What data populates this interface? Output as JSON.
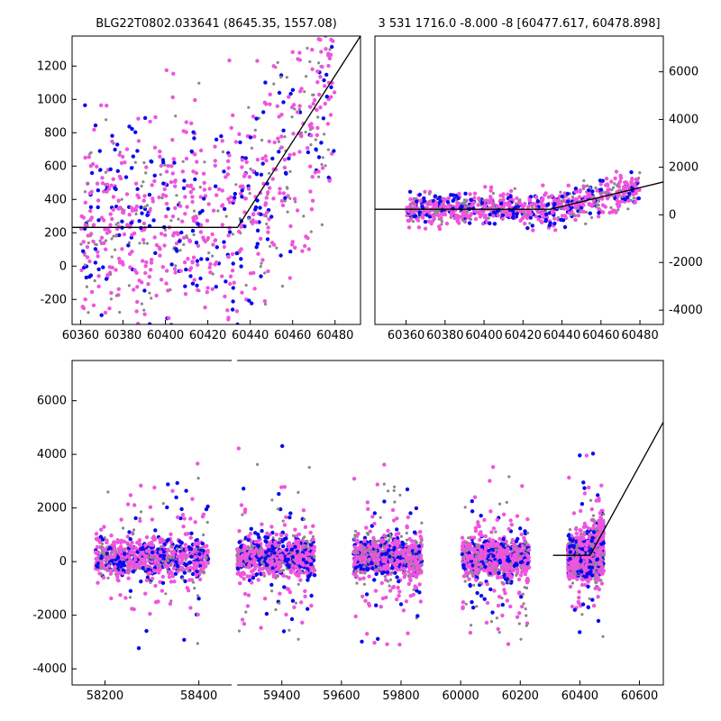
{
  "chart_data": [
    {
      "type": "scatter",
      "title": "BLG22T0802.033641 (8645.35, 1557.08)",
      "xlim": [
        60356,
        60492
      ],
      "ylim": [
        -350,
        1380
      ],
      "xticks": [
        "60360",
        "60380",
        "60400",
        "60420",
        "60440",
        "60460",
        "60480"
      ],
      "yticks": [
        "-200",
        "0",
        "200",
        "400",
        "600",
        "800",
        "1000",
        "1200"
      ],
      "grid": false,
      "series_colors": {
        "gray": "#888888",
        "magenta": "#ee55dd",
        "blue": "#0a0aee"
      },
      "model_line": {
        "x": [
          60356,
          60434,
          60492
        ],
        "y": [
          232,
          232,
          1380
        ]
      }
    },
    {
      "type": "scatter",
      "title": "3 531 1716.0 -8.000 -8 [60477.617, 60478.898]",
      "xlim": [
        60344,
        60492
      ],
      "ylim": [
        -4600,
        7500
      ],
      "xticks": [
        "60360",
        "60380",
        "60400",
        "60420",
        "60440",
        "60460",
        "60480"
      ],
      "yticks": [
        "-4000",
        "-2000",
        "0",
        "2000",
        "4000",
        "6000"
      ],
      "yaxis_side": "right",
      "grid": false,
      "model_line": {
        "x": [
          60344,
          60434,
          60492
        ],
        "y": [
          232,
          232,
          1380
        ]
      }
    },
    {
      "type": "scatter",
      "title": "",
      "xlim": [
        58130,
        60680
      ],
      "ylim": [
        -4600,
        7500
      ],
      "axis_break": [
        58470,
        59250
      ],
      "xticks": [
        "58200",
        "58400",
        "59400",
        "59600",
        "59800",
        "60000",
        "60200",
        "60400",
        "60600"
      ],
      "yticks": [
        "-4000",
        "-2000",
        "0",
        "2000",
        "4000",
        "6000"
      ],
      "grid": false,
      "seasons": [
        [
          58180,
          58420
        ],
        [
          59250,
          59510
        ],
        [
          59640,
          59870
        ],
        [
          60005,
          60230
        ],
        [
          60360,
          60480
        ]
      ],
      "model_line": {
        "x": [
          60310,
          60434,
          60680
        ],
        "y": [
          232,
          232,
          5200
        ]
      }
    }
  ]
}
